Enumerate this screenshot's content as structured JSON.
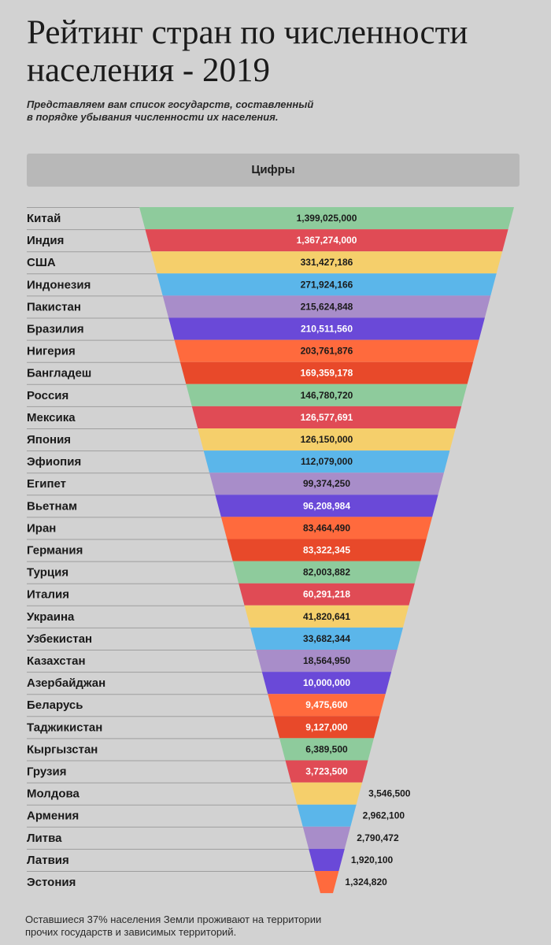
{
  "title_lines": [
    "Рейтинг стран по численности",
    "населения - 2019"
  ],
  "subtitle_lines": [
    "Представляем вам список государств, составленный",
    "в порядке убывания численности их населения."
  ],
  "column_header": "Цифры",
  "footnote_lines": [
    "Оставшиеся 37% населения Земли проживают на территории",
    "прочих государств и зависимых территорий."
  ],
  "chart_data": {
    "type": "bar",
    "categories": [
      "Китай",
      "Индия",
      "США",
      "Индонезия",
      "Пакистан",
      "Бразилия",
      "Нигерия",
      "Бангладеш",
      "Россия",
      "Мексика",
      "Япония",
      "Эфиопия",
      "Египет",
      "Вьетнам",
      "Иран",
      "Германия",
      "Турция",
      "Италия",
      "Украина",
      "Узбекистан",
      "Казахстан",
      "Азербайджан",
      "Беларусь",
      "Таджикистан",
      "Кыргызстан",
      "Грузия",
      "Молдова",
      "Армения",
      "Литва",
      "Латвия",
      "Эстония"
    ],
    "values": [
      1399025000,
      1367274000,
      331427186,
      271924166,
      215624848,
      210511560,
      203761876,
      169359178,
      146780720,
      126577691,
      126150000,
      112079000,
      99374250,
      96208984,
      83464490,
      83322345,
      82003882,
      60291218,
      41820641,
      33682344,
      18564950,
      10000000,
      9475600,
      9127000,
      6389500,
      3723500,
      3546500,
      2962100,
      2790472,
      1920100,
      1324820
    ],
    "value_labels": [
      "1,399,025,000",
      "1,367,274,000",
      "331,427,186",
      "271,924,166",
      "215,624,848",
      "210,511,560",
      "203,761,876",
      "169,359,178",
      "146,780,720",
      "126,577,691",
      "126,150,000",
      "112,079,000",
      "99,374,250",
      "96,208,984",
      "83,464,490",
      "83,322,345",
      "82,003,882",
      "60,291,218",
      "41,820,641",
      "33,682,344",
      "18,564,950",
      "10,000,000",
      "9,475,600",
      "9,127,000",
      "6,389,500",
      "3,723,500",
      "3,546,500",
      "2,962,100",
      "2,790,472",
      "1,920,100",
      "1,324,820"
    ],
    "colors": [
      "#8ecb9c",
      "#e04b55",
      "#f5cf6b",
      "#5bb6ea",
      "#a88dc9",
      "#6a49d8",
      "#ff6a3d",
      "#e8492a",
      "#8ecb9c",
      "#e04b55",
      "#f5cf6b",
      "#5bb6ea",
      "#a88dc9",
      "#6a49d8",
      "#ff6a3d",
      "#e8492a",
      "#8ecb9c",
      "#e04b55",
      "#f5cf6b",
      "#5bb6ea",
      "#a88dc9",
      "#6a49d8",
      "#ff6a3d",
      "#e8492a",
      "#8ecb9c",
      "#e04b55",
      "#f5cf6b",
      "#5bb6ea",
      "#a88dc9",
      "#6a49d8",
      "#ff6a3d"
    ],
    "label_text_colors": [
      "#1a1a1a",
      "#ffffff",
      "#1a1a1a",
      "#1a1a1a",
      "#1a1a1a",
      "#ffffff",
      "#1a1a1a",
      "#ffffff",
      "#1a1a1a",
      "#ffffff",
      "#1a1a1a",
      "#1a1a1a",
      "#1a1a1a",
      "#ffffff",
      "#1a1a1a",
      "#ffffff",
      "#1a1a1a",
      "#ffffff",
      "#1a1a1a",
      "#1a1a1a",
      "#1a1a1a",
      "#ffffff",
      "#ffffff",
      "#ffffff",
      "#1a1a1a",
      "#ffffff",
      "#1a1a1a",
      "#1a1a1a",
      "#1a1a1a",
      "#1a1a1a",
      "#1a1a1a"
    ],
    "shape": "funnel (bar widths decrease by rank)"
  }
}
